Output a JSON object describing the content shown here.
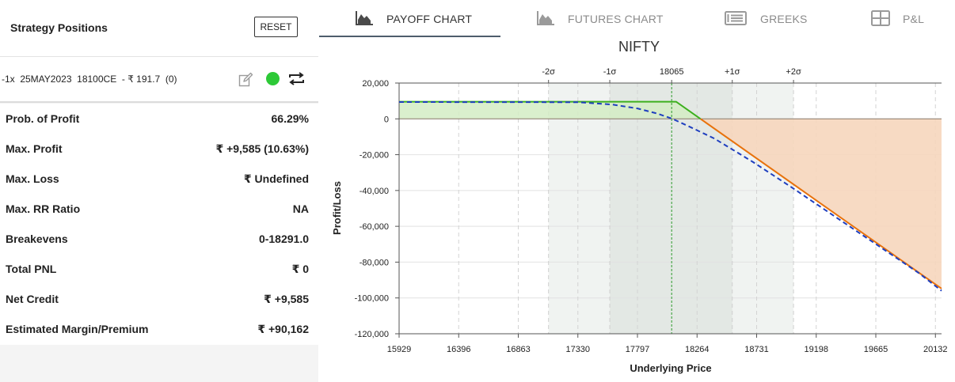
{
  "strategy_panel": {
    "title": "Strategy Positions",
    "reset_label": "RESET",
    "position": {
      "text": "-1x  25MAY2023  18100CE  - ₹ 191.7  (0)",
      "status_color": "#2dc937"
    },
    "stats": [
      {
        "label": "Prob. of Profit",
        "value": "66.29%"
      },
      {
        "label": "Max. Profit",
        "value": "₹ +9,585 (10.63%)"
      },
      {
        "label": "Max. Loss",
        "value": "₹ Undefined"
      },
      {
        "label": "Max. RR Ratio",
        "value": "NA"
      },
      {
        "label": "Breakevens",
        "value": "0-18291.0"
      },
      {
        "label": "Total PNL",
        "value": "₹ 0"
      },
      {
        "label": "Net Credit",
        "value": "₹ +9,585"
      },
      {
        "label": "Estimated Margin/Premium",
        "value": "₹ +90,162"
      }
    ]
  },
  "tabs": [
    {
      "label": "PAYOFF CHART",
      "icon": "area-chart-icon",
      "active": true
    },
    {
      "label": "FUTURES CHART",
      "icon": "area-chart-icon",
      "active": false
    },
    {
      "label": "GREEKS",
      "icon": "table-list-icon",
      "active": false
    },
    {
      "label": "P&L",
      "icon": "grid-icon",
      "active": false
    }
  ],
  "chart_data": {
    "type": "line",
    "title": "NIFTY",
    "xlabel": "Underlying Price",
    "ylabel": "Profit/Loss",
    "xlim": [
      15929,
      20180
    ],
    "ylim": [
      -120000,
      20000
    ],
    "x_ticks": [
      15929,
      16396,
      16863,
      17330,
      17797,
      18264,
      18731,
      19198,
      19665,
      20132
    ],
    "y_ticks": [
      20000,
      0,
      -20000,
      -40000,
      -60000,
      -80000,
      -100000,
      -120000
    ],
    "y_tick_labels": [
      "20,000",
      "0",
      "-20,000",
      "-40,000",
      "-60,000",
      "-80,000",
      "-100,000",
      "-120,000"
    ],
    "current_price": 18065,
    "sigma_levels": [
      {
        "label": "-2σ",
        "x": 17100
      },
      {
        "label": "-1σ",
        "x": 17580
      },
      {
        "label": "18065",
        "x": 18065
      },
      {
        "label": "+1σ",
        "x": 18540
      },
      {
        "label": "+2σ",
        "x": 19020
      }
    ],
    "series": [
      {
        "style": "solid",
        "color": "#e8720c",
        "x": [
          15929,
          18100,
          18291,
          20180
        ],
        "y": [
          9585,
          9585,
          0,
          -94800
        ]
      },
      {
        "style": "dashed",
        "color": "#1f3fbf",
        "x": [
          15929,
          17330,
          17600,
          17797,
          17950,
          18065,
          18200,
          18400,
          18700,
          19000,
          19500,
          20000,
          20180
        ],
        "y": [
          9400,
          9300,
          8000,
          5800,
          3000,
          200,
          -4200,
          -11000,
          -24000,
          -38000,
          -62000,
          -86000,
          -96000
        ]
      }
    ],
    "grid": true,
    "colors": {
      "profit_fill": "#d3ecc4",
      "loss_fill": "#f6d6bd",
      "profit_line": "#3cb01e",
      "loss_line": "#e8720c",
      "sigma1_band": "#e3e8e4",
      "sigma2_band": "#f0f3f1",
      "current_line": "#2b9a2b"
    }
  }
}
